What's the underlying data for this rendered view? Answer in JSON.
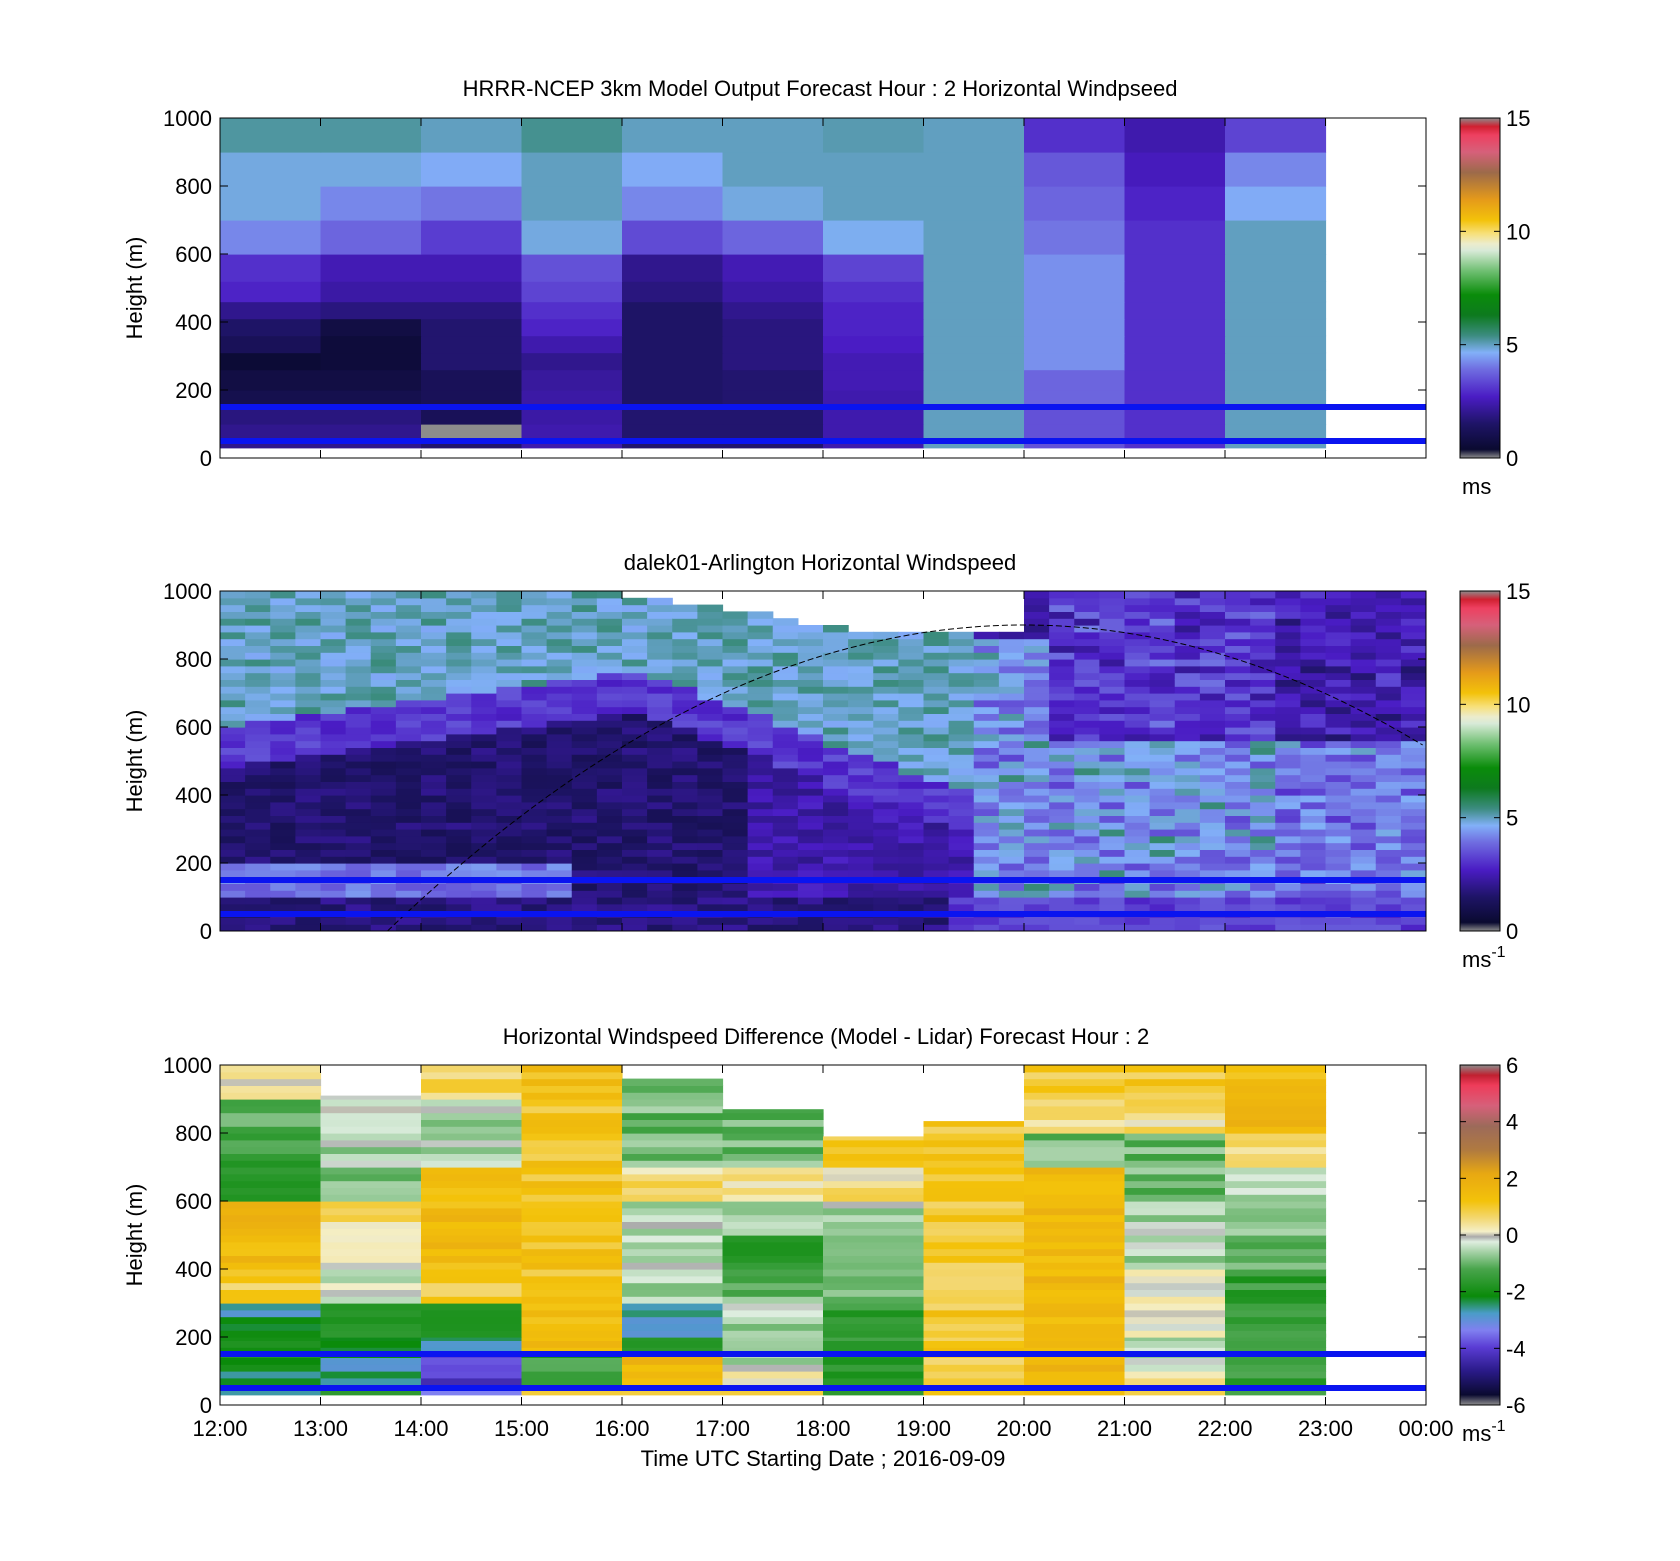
{
  "x_tick_labels": [
    "12:00",
    "13:00",
    "14:00",
    "15:00",
    "16:00",
    "17:00",
    "18:00",
    "19:00",
    "20:00",
    "21:00",
    "22:00",
    "23:00",
    "00:00"
  ],
  "x_axis_label": "Time UTC  Starting Date ; 2016-09-09",
  "colormap_speed": [
    [
      0.0,
      "#8c8c8c"
    ],
    [
      0.025,
      "#0a0a30"
    ],
    [
      0.1,
      "#1e1466"
    ],
    [
      0.18,
      "#4a1cc4"
    ],
    [
      0.26,
      "#6f6ce0"
    ],
    [
      0.31,
      "#82b0f8"
    ],
    [
      0.36,
      "#3c8c80"
    ],
    [
      0.42,
      "#0d7a1e"
    ],
    [
      0.48,
      "#0a8c0a"
    ],
    [
      0.55,
      "#6fbf72"
    ],
    [
      0.61,
      "#d8ead8"
    ],
    [
      0.63,
      "#ececcc"
    ],
    [
      0.66,
      "#f7e07a"
    ],
    [
      0.7,
      "#f3c20a"
    ],
    [
      0.76,
      "#e59a1a"
    ],
    [
      0.84,
      "#9c6a4a"
    ],
    [
      0.9,
      "#d6607a"
    ],
    [
      0.95,
      "#ee4060"
    ],
    [
      0.975,
      "#d02030"
    ],
    [
      1.0,
      "#8c8c8c"
    ]
  ],
  "colormap_diff": [
    [
      0.0,
      "#8c8c8c"
    ],
    [
      0.03,
      "#0a0a30"
    ],
    [
      0.1,
      "#2a1a88"
    ],
    [
      0.17,
      "#5a3cd4"
    ],
    [
      0.22,
      "#8080f0"
    ],
    [
      0.27,
      "#4a9cc8"
    ],
    [
      0.32,
      "#0a8a0a"
    ],
    [
      0.4,
      "#49a54c"
    ],
    [
      0.45,
      "#a5d1a6"
    ],
    [
      0.48,
      "#dfeee0"
    ],
    [
      0.495,
      "#aaaaaa"
    ],
    [
      0.51,
      "#f4efc8"
    ],
    [
      0.55,
      "#f3d770"
    ],
    [
      0.6,
      "#f3c20a"
    ],
    [
      0.68,
      "#e8a812"
    ],
    [
      0.75,
      "#b07a40"
    ],
    [
      0.82,
      "#9c6a5a"
    ],
    [
      0.88,
      "#d6607a"
    ],
    [
      0.94,
      "#ee3c5a"
    ],
    [
      0.97,
      "#c02030"
    ],
    [
      1.0,
      "#8c8c8c"
    ]
  ],
  "panels": [
    {
      "title": "HRRR-NCEP 3km Model Output   Forecast Hour : 2 Horizontal Windpseed",
      "ylabel": "Height (m)",
      "y_ticks": [
        "0",
        "200",
        "400",
        "600",
        "800",
        "1000"
      ],
      "colorbar_ticks": [
        "0",
        "5",
        "10",
        "15"
      ],
      "colorbar_unit": "ms",
      "colorbar_unit_sup": "",
      "show_x_tick_labels": false,
      "reference_lines_m": [
        150,
        50
      ],
      "chart_data": {
        "type": "heatmap",
        "variable": "Horizontal windspeed",
        "x_range": [
          "12:00",
          "00:00"
        ],
        "ylim": [
          0,
          1000
        ],
        "clim": [
          0,
          15
        ],
        "hour_columns": [
          "12:00",
          "13:00",
          "14:00",
          "15:00",
          "16:00",
          "17:00",
          "18:00",
          "19:00",
          "20:00",
          "21:00",
          "22:00"
        ],
        "height_layers_m": [
          [
            30,
            60
          ],
          [
            60,
            100
          ],
          [
            100,
            150
          ],
          [
            150,
            200
          ],
          [
            200,
            260
          ],
          [
            260,
            310
          ],
          [
            310,
            360
          ],
          [
            360,
            410
          ],
          [
            410,
            460
          ],
          [
            460,
            520
          ],
          [
            520,
            600
          ],
          [
            600,
            700
          ],
          [
            700,
            800
          ],
          [
            800,
            900
          ],
          [
            900,
            1000
          ]
        ],
        "values": [
          [
            2.0,
            2.0,
            1.6,
            2.4,
            1.6,
            1.6,
            2.4,
            5.0,
            3.5,
            3.0,
            5.0
          ],
          [
            2.0,
            2.0,
            0.0,
            2.4,
            1.6,
            1.6,
            2.4,
            5.0,
            3.5,
            3.0,
            5.0
          ],
          [
            1.8,
            1.8,
            1.2,
            2.3,
            1.6,
            1.6,
            2.4,
            5.0,
            3.5,
            3.0,
            5.0
          ],
          [
            1.0,
            1.0,
            1.2,
            2.3,
            1.5,
            1.6,
            2.4,
            5.0,
            3.8,
            3.0,
            5.0
          ],
          [
            0.8,
            0.8,
            1.2,
            2.2,
            1.5,
            1.6,
            2.5,
            5.0,
            3.8,
            3.0,
            5.0
          ],
          [
            0.5,
            0.6,
            1.6,
            2.0,
            1.5,
            1.8,
            2.5,
            5.0,
            4.3,
            3.0,
            5.0
          ],
          [
            1.2,
            0.6,
            1.6,
            2.4,
            1.5,
            1.8,
            2.7,
            5.0,
            4.3,
            3.0,
            5.0
          ],
          [
            1.5,
            0.8,
            1.6,
            2.8,
            1.5,
            1.8,
            2.8,
            5.0,
            4.3,
            3.0,
            5.0
          ],
          [
            2.0,
            1.8,
            1.8,
            3.0,
            1.5,
            2.0,
            2.8,
            5.0,
            4.3,
            3.0,
            5.0
          ],
          [
            2.8,
            2.3,
            2.3,
            3.3,
            1.8,
            2.3,
            3.0,
            5.0,
            4.3,
            3.0,
            5.0
          ],
          [
            3.0,
            2.5,
            2.5,
            3.5,
            2.0,
            2.5,
            3.3,
            5.0,
            4.3,
            3.0,
            5.0
          ],
          [
            4.2,
            3.8,
            3.2,
            4.8,
            3.4,
            3.8,
            4.7,
            5.0,
            4.0,
            3.0,
            5.0
          ],
          [
            4.8,
            4.2,
            4.0,
            5.0,
            4.2,
            4.8,
            5.0,
            5.0,
            3.8,
            2.8,
            4.6
          ],
          [
            4.8,
            4.8,
            4.6,
            5.0,
            4.6,
            5.0,
            5.0,
            5.0,
            3.6,
            2.6,
            4.2
          ],
          [
            5.2,
            5.2,
            5.0,
            5.3,
            5.0,
            5.0,
            5.1,
            5.0,
            3.0,
            2.4,
            3.3
          ]
        ]
      }
    },
    {
      "title": "dalek01-Arlington  Horizontal Windspeed",
      "ylabel": "Height (m)",
      "y_ticks": [
        "0",
        "200",
        "400",
        "600",
        "800",
        "1000"
      ],
      "colorbar_ticks": [
        "0",
        "5",
        "10",
        "15"
      ],
      "colorbar_unit": "ms",
      "colorbar_unit_sup": "-1",
      "show_x_tick_labels": false,
      "reference_lines_m": [
        150,
        50
      ],
      "chart_data": {
        "type": "heatmap",
        "variable": "Lidar horizontal windspeed",
        "x_range": [
          "12:00",
          "00:00"
        ],
        "ylim": [
          0,
          1000
        ],
        "clim": [
          0,
          15
        ],
        "data_extent": [
          "12:00",
          "23:55"
        ],
        "column_step_minutes": 15,
        "layers": [
          {
            "from_m": 0,
            "to_m": 100,
            "speed_ms": 1.8
          },
          {
            "from_m": 100,
            "to_m": 200,
            "speed_ms": 3.5,
            "note": "low-level jet, 12:00-15:00"
          },
          {
            "from_m": 200,
            "to_m": 500,
            "speed_ms": 1.5,
            "note": "nocturnal minimum, 12:00-18:00"
          },
          {
            "from_m": 500,
            "to_m": 650,
            "speed_ms": 3.0,
            "note": "transition band rising to ~650 m at 16:00"
          },
          {
            "from_m": 650,
            "to_m": 1000,
            "speed_ms": 5.0,
            "note": "upper layer until ~18:00"
          },
          {
            "from_m": 200,
            "to_m": 900,
            "speed_ms": 4.3,
            "note": "mixed layer 18:00-22:00"
          },
          {
            "from_m": 600,
            "to_m": 1000,
            "speed_ms": 2.0,
            "note": "above boundary layer 20:00-23:55"
          }
        ],
        "curve": {
          "style": "dashed",
          "peak_time": "20:00",
          "peak_height_m": 900,
          "base_time": "13:40",
          "base_height_m": 0,
          "end_height_m": 480
        }
      }
    },
    {
      "title": "Horizontal Windspeed Difference (Model - Lidar) Forecast Hour : 2",
      "ylabel": "Height (m)",
      "y_ticks": [
        "0",
        "200",
        "400",
        "600",
        "800",
        "1000"
      ],
      "colorbar_ticks": [
        "-6",
        "-4",
        "-2",
        "0",
        "2",
        "4",
        "6"
      ],
      "colorbar_unit": "ms",
      "colorbar_unit_sup": "-1",
      "show_x_tick_labels": true,
      "reference_lines_m": [
        150,
        50
      ],
      "chart_data": {
        "type": "heatmap",
        "variable": "Windspeed difference (Model - Lidar)",
        "x_range": [
          "12:00",
          "00:00"
        ],
        "ylim": [
          0,
          1000
        ],
        "clim": [
          -6,
          6
        ],
        "hour_columns": [
          "12:00",
          "13:00",
          "14:00",
          "15:00",
          "16:00",
          "17:00",
          "18:00",
          "19:00",
          "20:00",
          "21:00",
          "22:00"
        ],
        "column_top_m": [
          1000,
          910,
          1000,
          1000,
          960,
          870,
          790,
          835,
          1000,
          1000,
          1000
        ],
        "height_layers_m": [
          [
            30,
            60
          ],
          [
            60,
            100
          ],
          [
            100,
            150
          ],
          [
            150,
            200
          ],
          [
            200,
            300
          ],
          [
            300,
            400
          ],
          [
            400,
            500
          ],
          [
            500,
            600
          ],
          [
            600,
            700
          ],
          [
            700,
            800
          ],
          [
            800,
            900
          ],
          [
            900,
            1000
          ]
        ],
        "values": [
          [
            -2.5,
            -2.0,
            -3.5,
            0.5,
            1.0,
            0.5,
            -1.5,
            1.0,
            1.0,
            0.5,
            -1.0,
            0.5
          ],
          [
            -2.5,
            -2.5,
            -4.0,
            -1.5,
            1.5,
            0.5,
            -1.5,
            1.0,
            1.0,
            0.5,
            -1.5,
            0.5
          ],
          [
            -2.0,
            -2.5,
            -4.0,
            -1.5,
            1.5,
            -0.5,
            -1.5,
            1.0,
            1.5,
            -0.5,
            -1.5,
            0.5
          ],
          [
            -2.0,
            -2.5,
            -2.5,
            1.5,
            -1.5,
            -1.0,
            -1.5,
            1.0,
            1.5,
            -0.5,
            -1.5,
            1.0
          ],
          [
            -2.5,
            -1.5,
            -1.5,
            1.5,
            -2.5,
            -0.5,
            -1.5,
            1.0,
            1.5,
            0.0,
            -1.5,
            1.0
          ],
          [
            0.8,
            -0.2,
            1.0,
            1.2,
            -0.5,
            -1.0,
            -1.0,
            1.0,
            1.5,
            0.0,
            -1.5,
            1.0
          ],
          [
            1.5,
            0.0,
            1.5,
            1.2,
            -0.5,
            -1.5,
            -1.0,
            1.0,
            1.5,
            -0.5,
            -1.0,
            1.2
          ],
          [
            1.5,
            0.5,
            1.5,
            1.2,
            -0.5,
            -0.5,
            -0.5,
            1.0,
            1.5,
            -0.5,
            -1.0,
            1.2
          ],
          [
            -1.5,
            -1.0,
            1.5,
            1.2,
            0.5,
            0.5,
            0.5,
            1.0,
            1.5,
            -1.0,
            -0.5,
            1.2
          ],
          [
            -1.5,
            -0.5,
            -0.5,
            1.2,
            -1.0,
            -1.0,
            1.0,
            1.0,
            -1.0,
            -1.0,
            0.5,
            1.5
          ],
          [
            -1.0,
            -0.3,
            -0.5,
            1.2,
            -1.0,
            -1.0,
            null,
            1.0,
            0.5,
            0.5,
            1.5,
            1.8
          ],
          [
            0.3,
            -0.3,
            0.8,
            1.3,
            -1.0,
            null,
            null,
            null,
            1.0,
            1.0,
            1.5,
            1.5
          ]
        ]
      }
    }
  ]
}
